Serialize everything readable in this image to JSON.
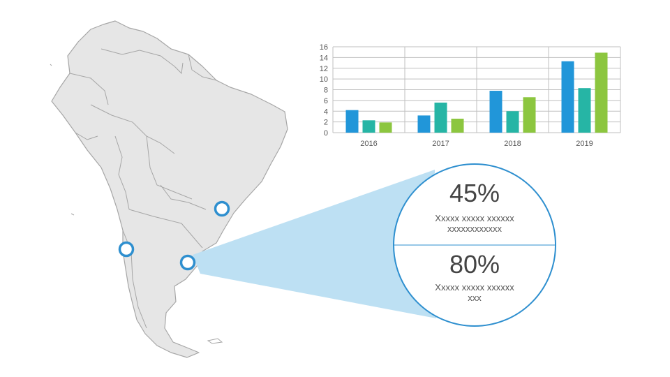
{
  "colors": {
    "map_fill": "#e6e6e6",
    "map_stroke": "#a6a6a6",
    "marker": "#2e8fcf",
    "zoom_fill": "#bde0f3",
    "circle_stroke": "#2e8fcf",
    "series": [
      "#2196d9",
      "#26b5a5",
      "#8cc63f"
    ]
  },
  "map": {
    "markers": [
      "sao-paulo",
      "santiago",
      "buenos-aires"
    ]
  },
  "stats": [
    {
      "value": "45%",
      "caption_line1": "Xxxxx xxxxx xxxxxx",
      "caption_line2": "xxxxxxxxxxxx"
    },
    {
      "value": "80%",
      "caption_line1": "Xxxxx xxxxx xxxxxx",
      "caption_line2": "xxx"
    }
  ],
  "chart_data": {
    "type": "bar",
    "categories": [
      "2016",
      "2017",
      "2018",
      "2019"
    ],
    "series": [
      {
        "values": [
          4.2,
          3.2,
          7.8,
          13.3
        ]
      },
      {
        "values": [
          2.3,
          5.6,
          4.0,
          8.3
        ]
      },
      {
        "values": [
          1.9,
          2.6,
          6.6,
          14.9
        ]
      }
    ],
    "yticks": [
      "0",
      "2",
      "4",
      "6",
      "8",
      "10",
      "12",
      "14",
      "16"
    ],
    "ylim": [
      0,
      16
    ],
    "grid": true,
    "legend": "none"
  }
}
